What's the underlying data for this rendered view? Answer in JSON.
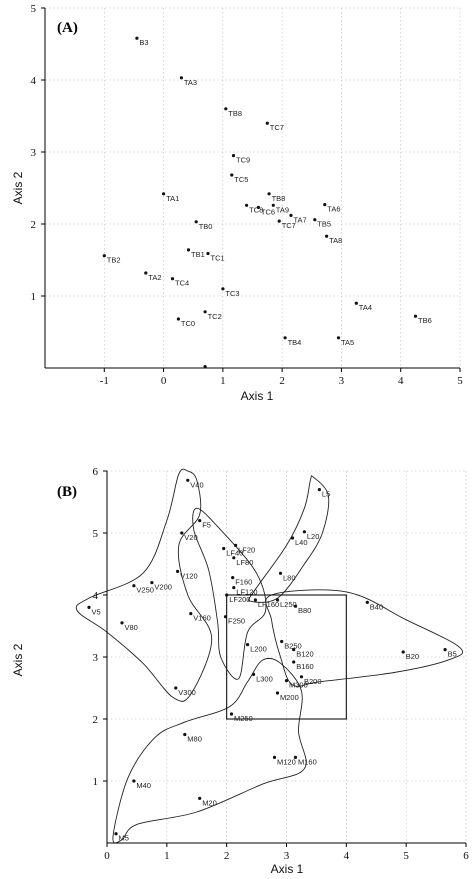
{
  "chart_data": [
    {
      "type": "scatter",
      "panel_label": "(A)",
      "xlabel": "Axis 1",
      "ylabel": "Axis 2",
      "xlim": [
        -2,
        5
      ],
      "ylim": [
        0,
        5
      ],
      "xticks": [
        "-1",
        "0",
        "1",
        "2",
        "3",
        "4",
        "5"
      ],
      "yticks": [
        "1",
        "2",
        "3",
        "4",
        "5"
      ],
      "grid": true,
      "points": [
        {
          "label": "B3",
          "x": -0.45,
          "y": 4.58
        },
        {
          "label": "TA3",
          "x": 0.3,
          "y": 4.03
        },
        {
          "label": "TB8",
          "x": 1.05,
          "y": 3.6
        },
        {
          "label": "TC7",
          "x": 1.75,
          "y": 3.4
        },
        {
          "label": "TC9",
          "x": 1.18,
          "y": 2.95
        },
        {
          "label": "TC5",
          "x": 1.15,
          "y": 2.68
        },
        {
          "label": "TB8",
          "x": 1.78,
          "y": 2.42
        },
        {
          "label": "TA1",
          "x": 0.0,
          "y": 2.42
        },
        {
          "label": "TC8",
          "x": 1.4,
          "y": 2.26
        },
        {
          "label": "TC6",
          "x": 1.6,
          "y": 2.23
        },
        {
          "label": "TA9",
          "x": 1.85,
          "y": 2.26
        },
        {
          "label": "TA6",
          "x": 2.72,
          "y": 2.27
        },
        {
          "label": "TA7",
          "x": 2.15,
          "y": 2.12
        },
        {
          "label": "TB5",
          "x": 2.55,
          "y": 2.06
        },
        {
          "label": "TC7",
          "x": 1.95,
          "y": 2.04
        },
        {
          "label": "TB0",
          "x": 0.55,
          "y": 2.03
        },
        {
          "label": "TA8",
          "x": 2.75,
          "y": 1.83
        },
        {
          "label": "TB1",
          "x": 0.42,
          "y": 1.64
        },
        {
          "label": "TC1",
          "x": 0.75,
          "y": 1.59
        },
        {
          "label": "TB2",
          "x": -1.0,
          "y": 1.56
        },
        {
          "label": "TA2",
          "x": -0.3,
          "y": 1.32
        },
        {
          "label": "TC4",
          "x": 0.15,
          "y": 1.24
        },
        {
          "label": "TC3",
          "x": 1.0,
          "y": 1.1
        },
        {
          "label": "TA4",
          "x": 3.25,
          "y": 0.9
        },
        {
          "label": "TC2",
          "x": 0.7,
          "y": 0.78
        },
        {
          "label": "TB6",
          "x": 4.25,
          "y": 0.72
        },
        {
          "label": "TC0",
          "x": 0.25,
          "y": 0.68
        },
        {
          "label": "TB4",
          "x": 2.05,
          "y": 0.42
        },
        {
          "label": "TA5",
          "x": 2.95,
          "y": 0.42
        },
        {
          "label": "",
          "x": 0.7,
          "y": 0.02
        }
      ]
    },
    {
      "type": "scatter",
      "panel_label": "(B)",
      "xlabel": "Axis 1",
      "ylabel": "Axis 2",
      "xlim": [
        0,
        6
      ],
      "ylim": [
        0,
        6
      ],
      "xticks": [
        "0",
        "1",
        "2",
        "3",
        "4",
        "5",
        "6"
      ],
      "yticks": [
        "1",
        "2",
        "3",
        "4",
        "5",
        "6"
      ],
      "grid": true,
      "points": [
        {
          "label": "V40",
          "x": 1.35,
          "y": 5.85
        },
        {
          "label": "L5",
          "x": 3.55,
          "y": 5.7
        },
        {
          "label": "F5",
          "x": 1.55,
          "y": 5.2
        },
        {
          "label": "V20",
          "x": 1.25,
          "y": 5.0
        },
        {
          "label": "L20",
          "x": 3.3,
          "y": 5.02
        },
        {
          "label": "L40",
          "x": 3.1,
          "y": 4.92
        },
        {
          "label": "LF20",
          "x": 2.15,
          "y": 4.8
        },
        {
          "label": "LF40",
          "x": 1.95,
          "y": 4.75
        },
        {
          "label": "LF80",
          "x": 2.12,
          "y": 4.6
        },
        {
          "label": "V120",
          "x": 1.18,
          "y": 4.38
        },
        {
          "label": "L80",
          "x": 2.9,
          "y": 4.35
        },
        {
          "label": "F160",
          "x": 2.1,
          "y": 4.28
        },
        {
          "label": "V250",
          "x": 0.45,
          "y": 4.15
        },
        {
          "label": "V200",
          "x": 0.75,
          "y": 4.2
        },
        {
          "label": "LF120",
          "x": 2.12,
          "y": 4.12
        },
        {
          "label": "LF200",
          "x": 2.0,
          "y": 4.0
        },
        {
          "label": "LF160",
          "x": 2.48,
          "y": 3.92
        },
        {
          "label": "L250",
          "x": 2.85,
          "y": 3.92
        },
        {
          "label": "B80",
          "x": 3.15,
          "y": 3.82
        },
        {
          "label": "B40",
          "x": 4.35,
          "y": 3.88
        },
        {
          "label": "V5",
          "x": -0.3,
          "y": 3.8
        },
        {
          "label": "F250",
          "x": 1.98,
          "y": 3.65
        },
        {
          "label": "V160",
          "x": 1.4,
          "y": 3.7
        },
        {
          "label": "V80",
          "x": 0.25,
          "y": 3.55
        },
        {
          "label": "L200",
          "x": 2.35,
          "y": 3.2
        },
        {
          "label": "B250",
          "x": 2.92,
          "y": 3.25
        },
        {
          "label": "B120",
          "x": 3.12,
          "y": 3.12
        },
        {
          "label": "B20",
          "x": 4.95,
          "y": 3.08
        },
        {
          "label": "B5",
          "x": 5.65,
          "y": 3.12
        },
        {
          "label": "B160",
          "x": 3.12,
          "y": 2.92
        },
        {
          "label": "L300",
          "x": 2.45,
          "y": 2.72
        },
        {
          "label": "B200",
          "x": 3.25,
          "y": 2.68
        },
        {
          "label": "M300",
          "x": 3.0,
          "y": 2.62
        },
        {
          "label": "V300",
          "x": 1.15,
          "y": 2.5
        },
        {
          "label": "M200",
          "x": 2.85,
          "y": 2.42
        },
        {
          "label": "M250",
          "x": 2.08,
          "y": 2.08
        },
        {
          "label": "M80",
          "x": 1.3,
          "y": 1.75
        },
        {
          "label": "M120",
          "x": 2.8,
          "y": 1.38
        },
        {
          "label": "M160",
          "x": 3.15,
          "y": 1.38
        },
        {
          "label": "M40",
          "x": 0.45,
          "y": 1.0
        },
        {
          "label": "M20",
          "x": 1.55,
          "y": 0.72
        },
        {
          "label": "M5",
          "x": 0.15,
          "y": 0.15
        }
      ],
      "hulls": [
        [
          [
            1.35,
            6.0
          ],
          [
            1.5,
            5.85
          ],
          [
            1.55,
            5.3
          ],
          [
            1.2,
            4.8
          ],
          [
            1.35,
            4.0
          ],
          [
            1.75,
            3.3
          ],
          [
            1.4,
            2.4
          ],
          [
            1.1,
            2.35
          ],
          [
            0.6,
            2.9
          ],
          [
            0.0,
            3.4
          ],
          [
            -0.5,
            3.75
          ],
          [
            -0.3,
            3.95
          ],
          [
            0.6,
            4.35
          ],
          [
            1.0,
            5.2
          ],
          [
            1.2,
            5.95
          ]
        ],
        [
          [
            1.5,
            5.4
          ],
          [
            1.9,
            5.05
          ],
          [
            2.5,
            4.35
          ],
          [
            2.65,
            3.75
          ],
          [
            2.35,
            3.4
          ],
          [
            2.2,
            2.65
          ],
          [
            1.9,
            3.0
          ],
          [
            1.85,
            3.55
          ],
          [
            1.7,
            4.4
          ],
          [
            1.45,
            5.05
          ]
        ],
        [
          [
            3.45,
            5.9
          ],
          [
            3.7,
            5.6
          ],
          [
            3.6,
            5.0
          ],
          [
            3.3,
            4.5
          ],
          [
            2.85,
            3.95
          ],
          [
            2.4,
            3.9
          ],
          [
            2.45,
            4.05
          ],
          [
            3.0,
            4.8
          ],
          [
            3.3,
            5.4
          ],
          [
            3.4,
            5.85
          ]
        ],
        [
          [
            2.75,
            4.0
          ],
          [
            4.0,
            4.05
          ],
          [
            5.0,
            3.6
          ],
          [
            5.9,
            3.15
          ],
          [
            5.7,
            2.95
          ],
          [
            4.8,
            2.75
          ],
          [
            3.55,
            2.6
          ],
          [
            3.1,
            2.55
          ],
          [
            2.9,
            3.0
          ],
          [
            2.75,
            3.6
          ]
        ],
        [
          [
            2.9,
            2.9
          ],
          [
            3.25,
            2.45
          ],
          [
            3.2,
            1.8
          ],
          [
            3.3,
            1.2
          ],
          [
            2.6,
            0.95
          ],
          [
            1.5,
            0.5
          ],
          [
            0.5,
            0.3
          ],
          [
            0.25,
            0.05
          ],
          [
            0.1,
            0.1
          ],
          [
            0.35,
            1.05
          ],
          [
            0.8,
            1.7
          ],
          [
            1.3,
            1.95
          ],
          [
            2.05,
            2.2
          ],
          [
            2.35,
            2.6
          ],
          [
            2.6,
            2.95
          ]
        ]
      ],
      "box": {
        "x0": 2.0,
        "x1": 4.0,
        "y0": 2.0,
        "y1": 4.0
      }
    }
  ]
}
